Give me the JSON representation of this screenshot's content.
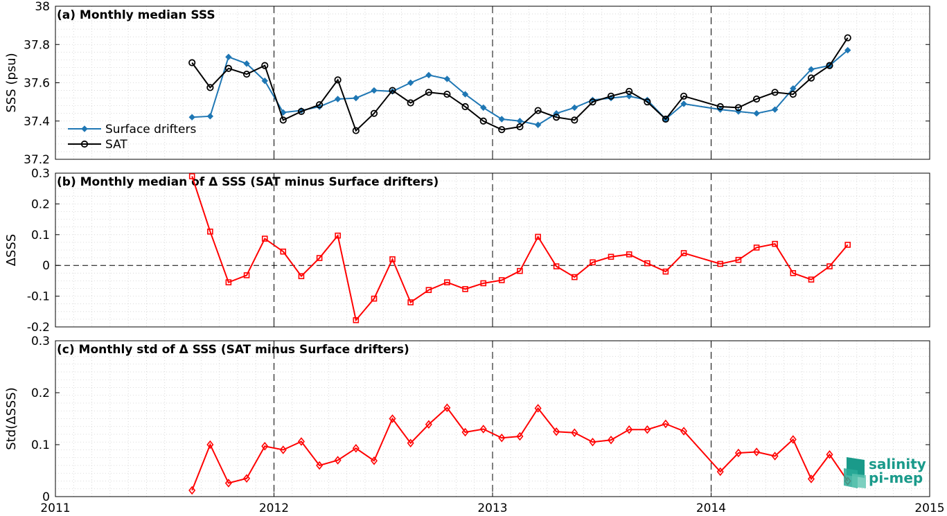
{
  "chart_data": [
    {
      "id": "a",
      "type": "line",
      "title": "(a) Monthly median SSS",
      "ylabel": "SSS (psu)",
      "ylim": [
        37.2,
        38
      ],
      "yticks": [
        37.2,
        37.4,
        37.6,
        37.8,
        38
      ],
      "yticklabels": [
        "37.2",
        "37.4",
        "37.6",
        "37.8",
        "38"
      ],
      "xlim": [
        2011,
        2015
      ],
      "grid": true,
      "legend": "lower-left",
      "series": [
        {
          "name": "Surface drifters",
          "color": "#1f77b4",
          "marker": "diamond-filled",
          "x": [
            2011.625,
            2011.708,
            2011.792,
            2011.875,
            2011.958,
            2012.042,
            2012.125,
            2012.208,
            2012.292,
            2012.375,
            2012.458,
            2012.542,
            2012.625,
            2012.708,
            2012.792,
            2012.875,
            2012.958,
            2013.042,
            2013.125,
            2013.208,
            2013.292,
            2013.375,
            2013.458,
            2013.542,
            2013.625,
            2013.708,
            2013.792,
            2013.875,
            2014.042,
            2014.125,
            2014.208,
            2014.292,
            2014.375,
            2014.458,
            2014.542,
            2014.625
          ],
          "y": [
            37.42,
            37.425,
            37.735,
            37.7,
            37.61,
            37.445,
            37.455,
            37.475,
            37.515,
            37.52,
            37.56,
            37.555,
            37.6,
            37.64,
            37.62,
            37.54,
            37.47,
            37.41,
            37.4,
            37.38,
            37.44,
            37.47,
            37.51,
            37.52,
            37.53,
            37.51,
            37.41,
            37.49,
            37.46,
            37.45,
            37.44,
            37.46,
            37.57,
            37.67,
            37.69,
            37.77
          ]
        },
        {
          "name": "SAT",
          "color": "#000000",
          "marker": "circle-open",
          "x": [
            2011.625,
            2011.708,
            2011.792,
            2011.875,
            2011.958,
            2012.042,
            2012.125,
            2012.208,
            2012.292,
            2012.375,
            2012.458,
            2012.542,
            2012.625,
            2012.708,
            2012.792,
            2012.875,
            2012.958,
            2013.042,
            2013.125,
            2013.208,
            2013.292,
            2013.375,
            2013.458,
            2013.542,
            2013.625,
            2013.708,
            2013.792,
            2013.875,
            2014.042,
            2014.125,
            2014.208,
            2014.292,
            2014.375,
            2014.458,
            2014.542,
            2014.625
          ],
          "y": [
            37.705,
            37.575,
            37.675,
            37.645,
            37.69,
            37.405,
            37.45,
            37.485,
            37.615,
            37.35,
            37.44,
            37.56,
            37.495,
            37.55,
            37.54,
            37.475,
            37.4,
            37.355,
            37.37,
            37.455,
            37.42,
            37.405,
            37.5,
            37.53,
            37.555,
            37.5,
            37.41,
            37.53,
            37.475,
            37.47,
            37.515,
            37.55,
            37.54,
            37.625,
            37.69,
            37.835
          ]
        }
      ]
    },
    {
      "id": "b",
      "type": "line",
      "title": "(b) Monthly median of Δ SSS (SAT minus Surface drifters)",
      "ylabel": "ΔSSS",
      "ylim": [
        -0.2,
        0.3
      ],
      "yticks": [
        -0.2,
        -0.1,
        0,
        0.1,
        0.2,
        0.3
      ],
      "yticklabels": [
        "-0.2",
        "-0.1",
        "0",
        "0.1",
        "0.2",
        "0.3"
      ],
      "xlim": [
        2011,
        2015
      ],
      "grid": true,
      "zero_line": true,
      "series": [
        {
          "color": "#ff0000",
          "marker": "square-open",
          "x": [
            2011.625,
            2011.708,
            2011.792,
            2011.875,
            2011.958,
            2012.042,
            2012.125,
            2012.208,
            2012.292,
            2012.375,
            2012.458,
            2012.542,
            2012.625,
            2012.708,
            2012.792,
            2012.875,
            2012.958,
            2013.042,
            2013.125,
            2013.208,
            2013.292,
            2013.375,
            2013.458,
            2013.542,
            2013.625,
            2013.708,
            2013.792,
            2013.875,
            2014.042,
            2014.125,
            2014.208,
            2014.292,
            2014.375,
            2014.458,
            2014.542,
            2014.625
          ],
          "y": [
            0.29,
            0.11,
            -0.055,
            -0.032,
            0.087,
            0.045,
            -0.035,
            0.024,
            0.097,
            -0.178,
            -0.108,
            0.02,
            -0.12,
            -0.08,
            -0.055,
            -0.077,
            -0.058,
            -0.048,
            -0.018,
            0.093,
            -0.003,
            -0.038,
            0.01,
            0.028,
            0.036,
            0.007,
            -0.02,
            0.04,
            0.005,
            0.018,
            0.058,
            0.07,
            -0.025,
            -0.046,
            -0.003,
            0.067
          ]
        }
      ]
    },
    {
      "id": "c",
      "type": "line",
      "title": "(c) Monthly std of Δ SSS (SAT minus Surface drifters)",
      "ylabel": "Std(ΔSSS)",
      "ylim": [
        0,
        0.3
      ],
      "yticks": [
        0,
        0.1,
        0.2,
        0.3
      ],
      "yticklabels": [
        "0",
        "0.1",
        "0.2",
        "0.3"
      ],
      "xlim": [
        2011,
        2015
      ],
      "xticks": [
        2011,
        2012,
        2013,
        2014,
        2015
      ],
      "xticklabels": [
        "2011",
        "2012",
        "2013",
        "2014",
        "2015"
      ],
      "grid": true,
      "series": [
        {
          "color": "#ff0000",
          "marker": "diamond-open",
          "x": [
            2011.625,
            2011.708,
            2011.792,
            2011.875,
            2011.958,
            2012.042,
            2012.125,
            2012.208,
            2012.292,
            2012.375,
            2012.458,
            2012.542,
            2012.625,
            2012.708,
            2012.792,
            2012.875,
            2012.958,
            2013.042,
            2013.125,
            2013.208,
            2013.292,
            2013.375,
            2013.458,
            2013.542,
            2013.625,
            2013.708,
            2013.792,
            2013.875,
            2014.042,
            2014.125,
            2014.208,
            2014.292,
            2014.375,
            2014.458,
            2014.542,
            2014.625
          ],
          "y": [
            0.012,
            0.1,
            0.026,
            0.035,
            0.097,
            0.09,
            0.106,
            0.06,
            0.07,
            0.093,
            0.069,
            0.15,
            0.103,
            0.139,
            0.171,
            0.124,
            0.13,
            0.113,
            0.116,
            0.17,
            0.125,
            0.123,
            0.105,
            0.109,
            0.129,
            0.129,
            0.14,
            0.126,
            0.048,
            0.084,
            0.086,
            0.078,
            0.11,
            0.034,
            0.081,
            0.03
          ]
        }
      ]
    }
  ],
  "logo": {
    "line1": "salinity",
    "line2": "pi-mep",
    "color": "#1a9a8a"
  }
}
